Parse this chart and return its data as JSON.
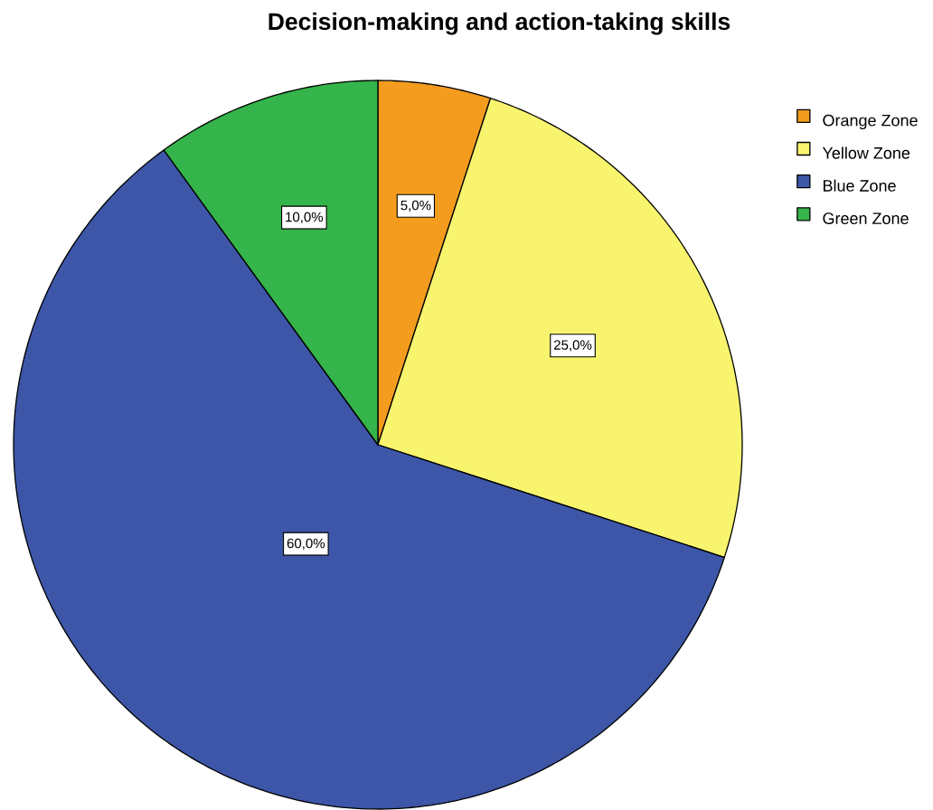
{
  "chart_data": {
    "type": "pie",
    "title": "Decision-making and action-taking skills",
    "categories": [
      "Orange Zone",
      "Yellow Zone",
      "Blue Zone",
      "Green Zone"
    ],
    "values": [
      5,
      25,
      60,
      10
    ],
    "colors": [
      "#f39c1e",
      "#f8f46e",
      "#3d56a8",
      "#34b44a"
    ],
    "value_labels": [
      "5,0%",
      "25,0%",
      "60,0%",
      "10,0%"
    ],
    "legend": "top right"
  }
}
